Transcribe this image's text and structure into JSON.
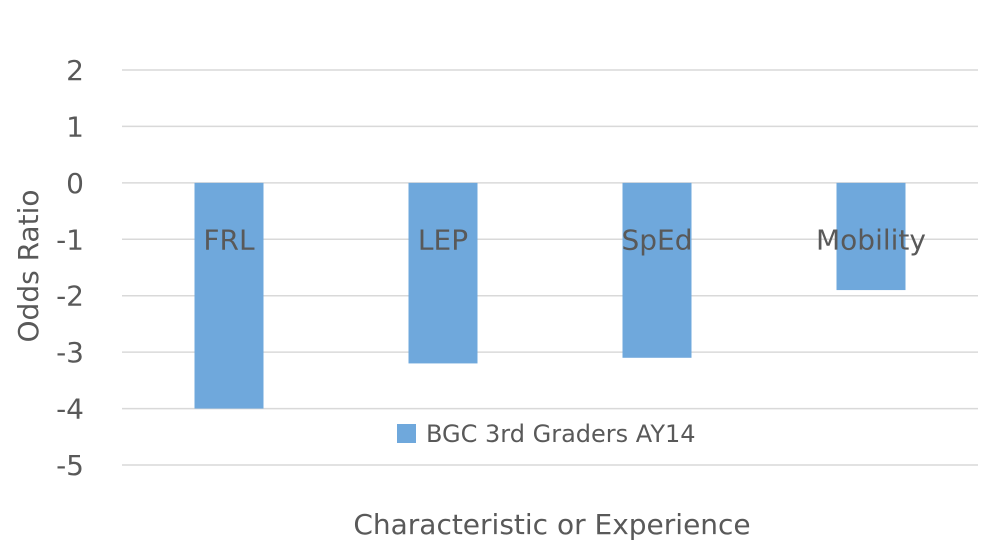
{
  "chart_data": {
    "type": "bar",
    "categories": [
      "FRL",
      "LEP",
      "SpEd",
      "Mobility"
    ],
    "series": [
      {
        "name": "BGC 3rd Graders AY14",
        "values": [
          -4.0,
          -3.2,
          -3.1,
          -1.9
        ],
        "color": "#6fa8dc"
      }
    ],
    "xlabel": "Characteristic or Experience",
    "ylabel": "Odds Ratio",
    "ylim": [
      -5,
      2
    ],
    "yticks": [
      2,
      1,
      0,
      -1,
      -2,
      -3,
      -4,
      -5
    ],
    "grid": true,
    "legend_position": "bottom-inside",
    "category_label_position": "inside-bars-near-zero"
  }
}
